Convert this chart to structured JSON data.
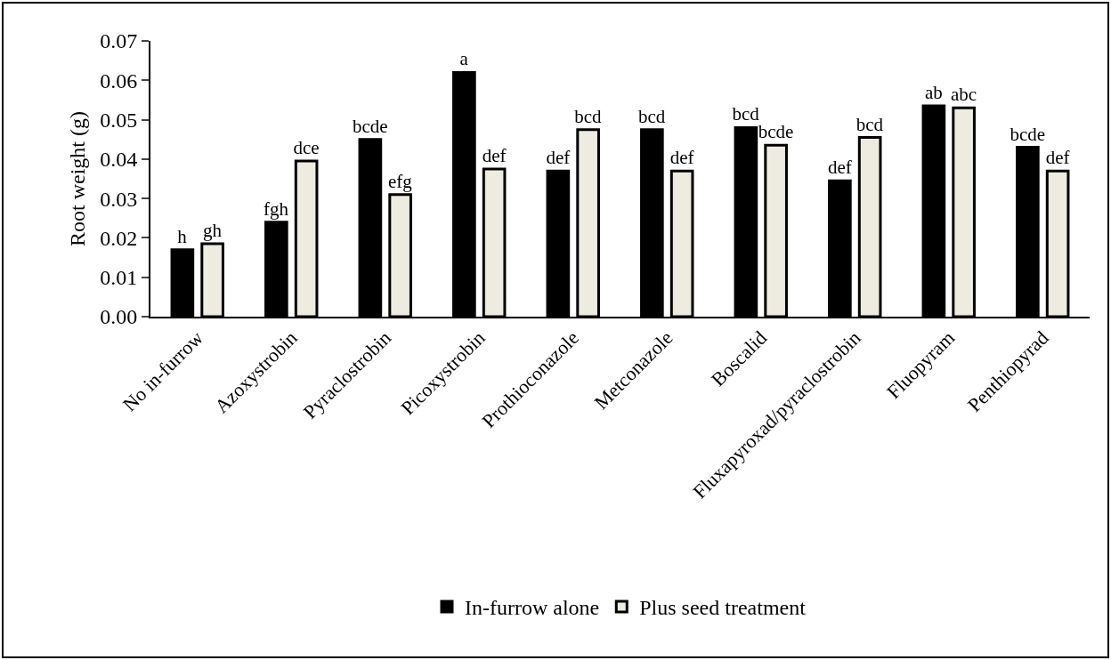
{
  "chart_data": {
    "type": "bar",
    "ylabel": "Root weight (g)",
    "categories": [
      "No in-furrow",
      "Azoxystrobin",
      "Pyraclostrobin",
      "Picoxystrobin",
      "Prothioconazole",
      "Metconazole",
      "Boscalid",
      "Fluxapyroxad/pyraclostrobin",
      "Fluopyram",
      "Penthiopyrad"
    ],
    "series": [
      {
        "name": "In-furrow alone",
        "color": "#000000",
        "values": [
          0.017,
          0.024,
          0.045,
          0.062,
          0.037,
          0.0475,
          0.048,
          0.0345,
          0.0535,
          0.043
        ],
        "value_labels": [
          "h",
          "fgh",
          "bcde",
          "a",
          "def",
          "bcd",
          "bcd",
          "def",
          "ab",
          "bcde"
        ]
      },
      {
        "name": "Plus seed treatment",
        "color": "#eeebe0",
        "values": [
          0.0185,
          0.0395,
          0.031,
          0.0375,
          0.0475,
          0.037,
          0.0435,
          0.0455,
          0.053,
          0.037
        ],
        "value_labels": [
          "gh",
          "dce",
          "efg",
          "def",
          "bcd",
          "def",
          "bcde",
          "bcd",
          "abc",
          "def"
        ]
      }
    ],
    "ylim": [
      0,
      0.07
    ],
    "yticks": [
      {
        "value": 0,
        "label": "0.00"
      },
      0.01,
      0.02,
      0.03,
      0.04,
      0.05,
      0.06,
      0.07
    ],
    "grid": false,
    "legend": "bottom"
  }
}
